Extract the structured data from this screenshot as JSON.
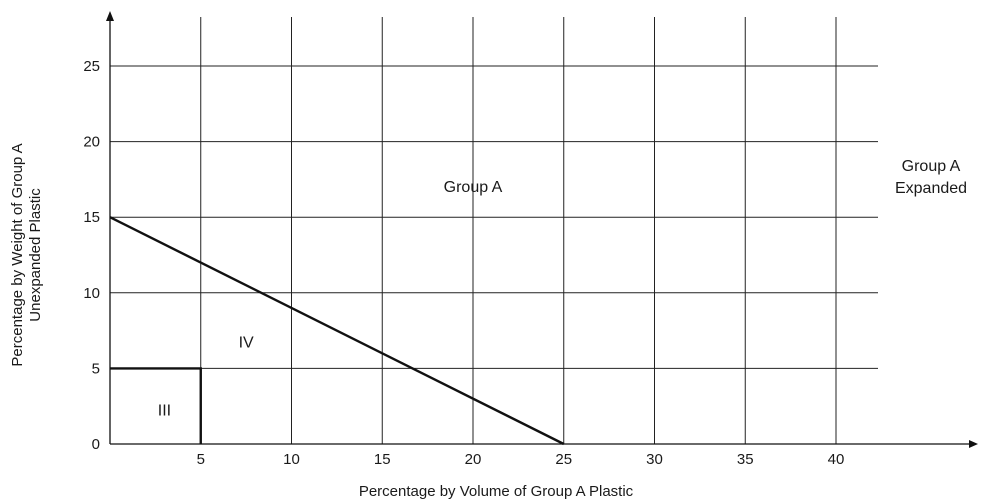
{
  "chart_data": {
    "type": "line",
    "title": "",
    "xlabel": "Percentage by Volume of Group A Plastic",
    "ylabel_lines": [
      "Percentage by Weight of Group A",
      "Unexpanded Plastic"
    ],
    "x_ticks": [
      5,
      10,
      15,
      20,
      25,
      30,
      35,
      40
    ],
    "y_ticks": [
      0,
      5,
      10,
      15,
      20,
      25
    ],
    "xlim": [
      0,
      43
    ],
    "ylim": [
      0,
      27
    ],
    "grid": true,
    "series": [
      {
        "x": [
          0,
          25
        ],
        "y": [
          15,
          0
        ]
      },
      {
        "x": [
          0,
          5,
          5
        ],
        "y": [
          5,
          5,
          0
        ]
      }
    ],
    "region_labels": [
      {
        "text": "Group A",
        "x": 20,
        "y": 17
      },
      {
        "text": "IV",
        "x": 7.5,
        "y": 6.7
      },
      {
        "text": "III",
        "x": 3,
        "y": 2.2
      }
    ],
    "outside_label_lines": [
      "Group A",
      "Expanded"
    ]
  }
}
